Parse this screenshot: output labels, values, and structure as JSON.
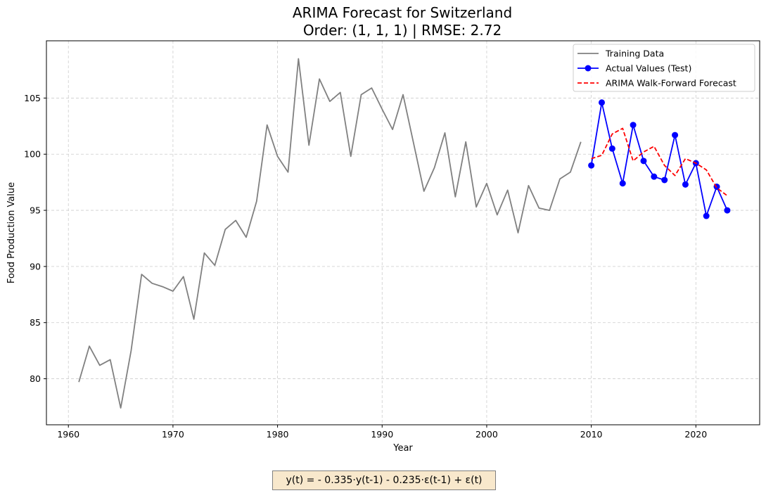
{
  "chart_data": {
    "type": "line",
    "title": "ARIMA Forecast for Switzerland",
    "subtitle": "Order: (1, 1, 1) | RMSE: 2.72",
    "xlabel": "Year",
    "ylabel": "Food Production Value",
    "xlim": [
      1957.9,
      2026.1
    ],
    "ylim": [
      75.9,
      110.1
    ],
    "xticks": [
      1960,
      1970,
      1980,
      1990,
      2000,
      2010,
      2020
    ],
    "yticks": [
      80,
      85,
      90,
      95,
      100,
      105
    ],
    "grid": true,
    "legend_position": "top-right",
    "equation": "y(t) = - 0.335·y(t-1) - 0.235·ε(t-1) + ε(t)",
    "series": [
      {
        "name": "Training Data",
        "color": "#808080",
        "style": "solid",
        "marker": "none",
        "x": [
          1961,
          1962,
          1963,
          1964,
          1965,
          1966,
          1967,
          1968,
          1969,
          1970,
          1971,
          1972,
          1973,
          1974,
          1975,
          1976,
          1977,
          1978,
          1979,
          1980,
          1981,
          1982,
          1983,
          1984,
          1985,
          1986,
          1987,
          1988,
          1989,
          1990,
          1991,
          1992,
          1993,
          1994,
          1995,
          1996,
          1997,
          1998,
          1999,
          2000,
          2001,
          2002,
          2003,
          2004,
          2005,
          2006,
          2007,
          2008,
          2009
        ],
        "y": [
          79.7,
          82.9,
          81.2,
          81.7,
          77.4,
          82.5,
          89.3,
          88.5,
          88.2,
          87.8,
          89.1,
          85.3,
          91.2,
          90.1,
          93.3,
          94.1,
          92.6,
          95.8,
          102.6,
          99.8,
          98.4,
          108.5,
          100.8,
          106.7,
          104.7,
          105.5,
          99.8,
          105.3,
          105.9,
          104.0,
          102.2,
          105.3,
          101.0,
          96.7,
          98.8,
          101.9,
          96.2,
          101.1,
          95.3,
          97.4,
          94.6,
          96.8,
          93.0,
          97.2,
          95.2,
          95.0,
          97.8,
          98.4,
          101.1
        ]
      },
      {
        "name": "Actual Values (Test)",
        "color": "#0000ff",
        "style": "solid",
        "marker": "circle",
        "x": [
          2010,
          2011,
          2012,
          2013,
          2014,
          2015,
          2016,
          2017,
          2018,
          2019,
          2020,
          2021,
          2022,
          2023
        ],
        "y": [
          99.0,
          104.6,
          100.5,
          97.4,
          102.6,
          99.4,
          98.0,
          97.7,
          101.7,
          97.3,
          99.2,
          94.5,
          97.1,
          95.0
        ]
      },
      {
        "name": "ARIMA Walk-Forward Forecast",
        "color": "#ff0000",
        "style": "dashed",
        "marker": "none",
        "x": [
          2010,
          2011,
          2012,
          2013,
          2014,
          2015,
          2016,
          2017,
          2018,
          2019,
          2020,
          2021,
          2022,
          2023
        ],
        "y": [
          99.6,
          99.9,
          101.8,
          102.3,
          99.4,
          100.2,
          100.7,
          99.0,
          98.1,
          99.6,
          99.2,
          98.6,
          97.0,
          96.3
        ]
      }
    ]
  }
}
